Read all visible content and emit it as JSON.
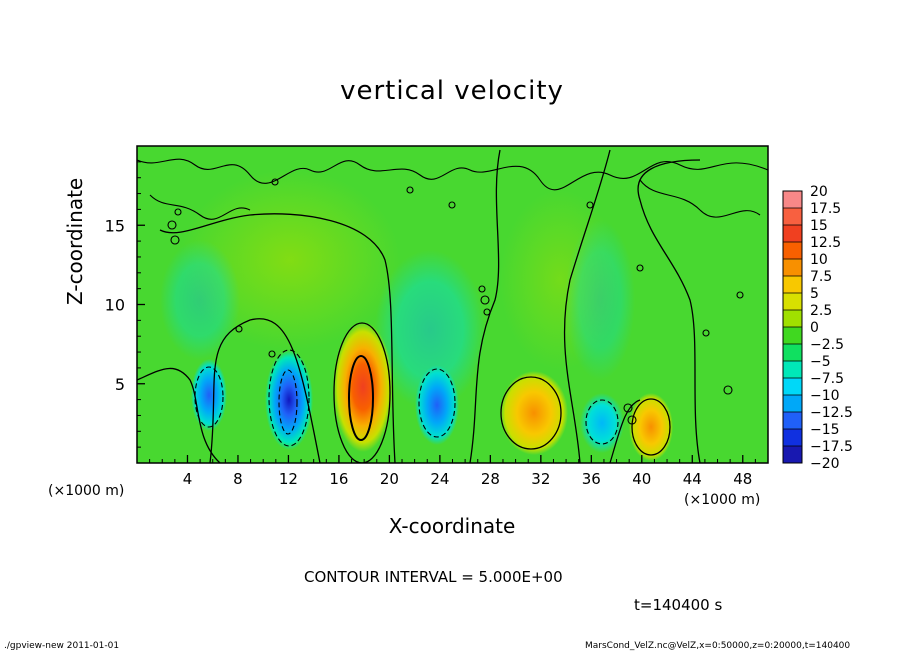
{
  "chart_data": {
    "type": "heatmap",
    "title": "vertical velocity",
    "xlabel": "X-coordinate",
    "ylabel": "Z-coordinate",
    "x_unit_label": "(×1000 m)",
    "x_unit_label_right": "(×1000 m)",
    "xlim": [
      0,
      50
    ],
    "ylim": [
      0,
      20
    ],
    "xticks": [
      4,
      8,
      12,
      16,
      20,
      24,
      28,
      32,
      36,
      40,
      44,
      48
    ],
    "yticks": [
      5,
      10,
      15
    ],
    "colorbar": {
      "levels": [
        "20",
        "17.5",
        "15",
        "12.5",
        "10",
        "7.5",
        "5",
        "2.5",
        "0",
        "−2.5",
        "−5",
        "−7.5",
        "−10",
        "−12.5",
        "−15",
        "−17.5",
        "−20"
      ],
      "colors": [
        "#f88888",
        "#f86040",
        "#f04020",
        "#f86000",
        "#f89000",
        "#f8c800",
        "#d8e000",
        "#a0e000",
        "#40d820",
        "#10e060",
        "#00e8b8",
        "#00d8f8",
        "#00a8f8",
        "#2060f8",
        "#1030e0",
        "#1818b0",
        "#6010b0"
      ]
    },
    "features": [
      {
        "kind": "updraft",
        "x": 18,
        "z": 4.5,
        "peak": 12
      },
      {
        "kind": "downdraft",
        "x": 12,
        "z": 3.5,
        "peak": -15
      },
      {
        "kind": "downdraft",
        "x": 5.8,
        "z": 4,
        "peak": -10
      },
      {
        "kind": "downdraft",
        "x": 23.5,
        "z": 3.5,
        "peak": -8
      },
      {
        "kind": "downdraft",
        "x": 37,
        "z": 2.5,
        "peak": -6
      },
      {
        "kind": "updraft",
        "x": 31.5,
        "z": 3.5,
        "peak": 8
      },
      {
        "kind": "updraft",
        "x": 40.5,
        "z": 2.5,
        "peak": 7
      }
    ]
  },
  "annotations": {
    "contour_interval": "CONTOUR INTERVAL = 5.000E+00",
    "time": "t=140400 s",
    "footer_left": "./gpview-new   2011-01-01",
    "footer_right": "MarsCond_VelZ.nc@VelZ,x=0:50000,z=0:20000,t=140400"
  }
}
